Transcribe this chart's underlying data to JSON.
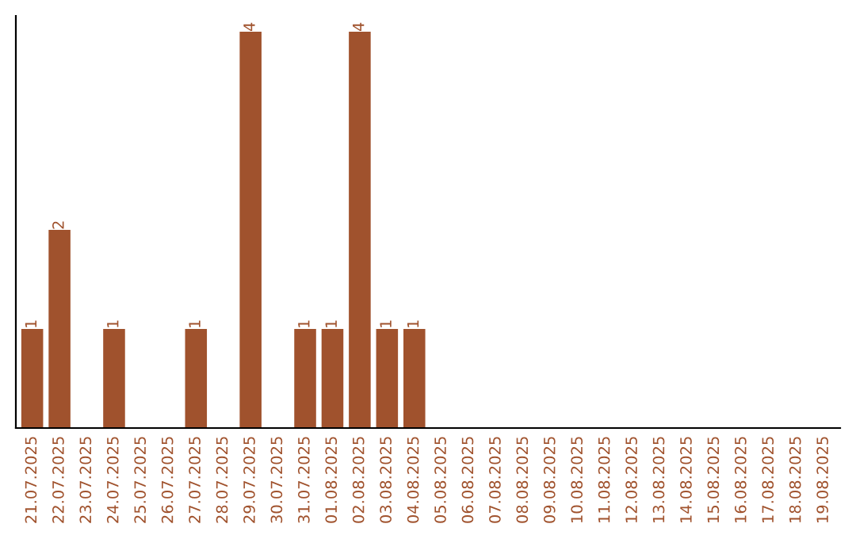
{
  "chart_data": {
    "type": "bar",
    "categories": [
      "21.07.2025",
      "22.07.2025",
      "23.07.2025",
      "24.07.2025",
      "25.07.2025",
      "26.07.2025",
      "27.07.2025",
      "28.07.2025",
      "29.07.2025",
      "30.07.2025",
      "31.07.2025",
      "01.08.2025",
      "02.08.2025",
      "03.08.2025",
      "04.08.2025",
      "05.08.2025",
      "06.08.2025",
      "07.08.2025",
      "08.08.2025",
      "09.08.2025",
      "10.08.2025",
      "11.08.2025",
      "12.08.2025",
      "13.08.2025",
      "14.08.2025",
      "15.08.2025",
      "16.08.2025",
      "17.08.2025",
      "18.08.2025",
      "19.08.2025"
    ],
    "values": [
      1,
      2,
      0,
      1,
      0,
      0,
      1,
      0,
      4,
      0,
      1,
      1,
      4,
      1,
      1,
      0,
      0,
      0,
      0,
      0,
      0,
      0,
      0,
      0,
      0,
      0,
      0,
      0,
      0,
      0
    ],
    "value_labels": [
      "1",
      "2",
      null,
      "1",
      null,
      null,
      "1",
      null,
      "4",
      null,
      "1",
      "1",
      "4",
      "1",
      "1",
      null,
      null,
      null,
      null,
      null,
      null,
      null,
      null,
      null,
      null,
      null,
      null,
      null,
      null,
      null
    ],
    "color": "#a0522d",
    "tick_labels": "x",
    "grid": false,
    "legend": false
  }
}
